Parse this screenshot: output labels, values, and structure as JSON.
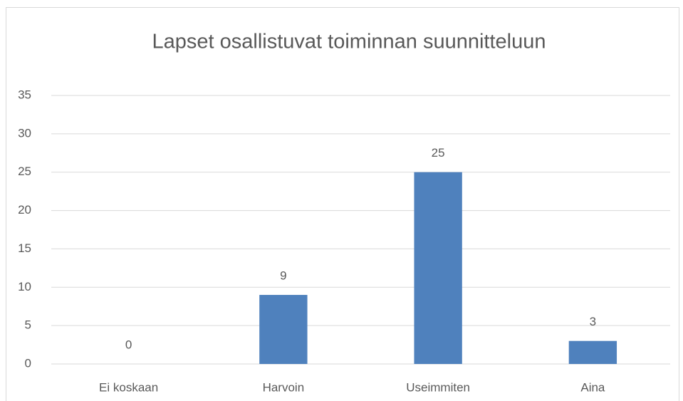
{
  "chart_data": {
    "type": "bar",
    "title": "Lapset osallistuvat toiminnan suunnitteluun",
    "categories": [
      "Ei koskaan",
      "Harvoin",
      "Useimmiten",
      "Aina"
    ],
    "values": [
      0,
      9,
      25,
      3
    ],
    "color": "#4f81bd",
    "ylim": [
      0,
      35
    ],
    "yticks": [
      0,
      5,
      10,
      15,
      20,
      25,
      30,
      35
    ],
    "grid": true,
    "data_labels": true
  }
}
